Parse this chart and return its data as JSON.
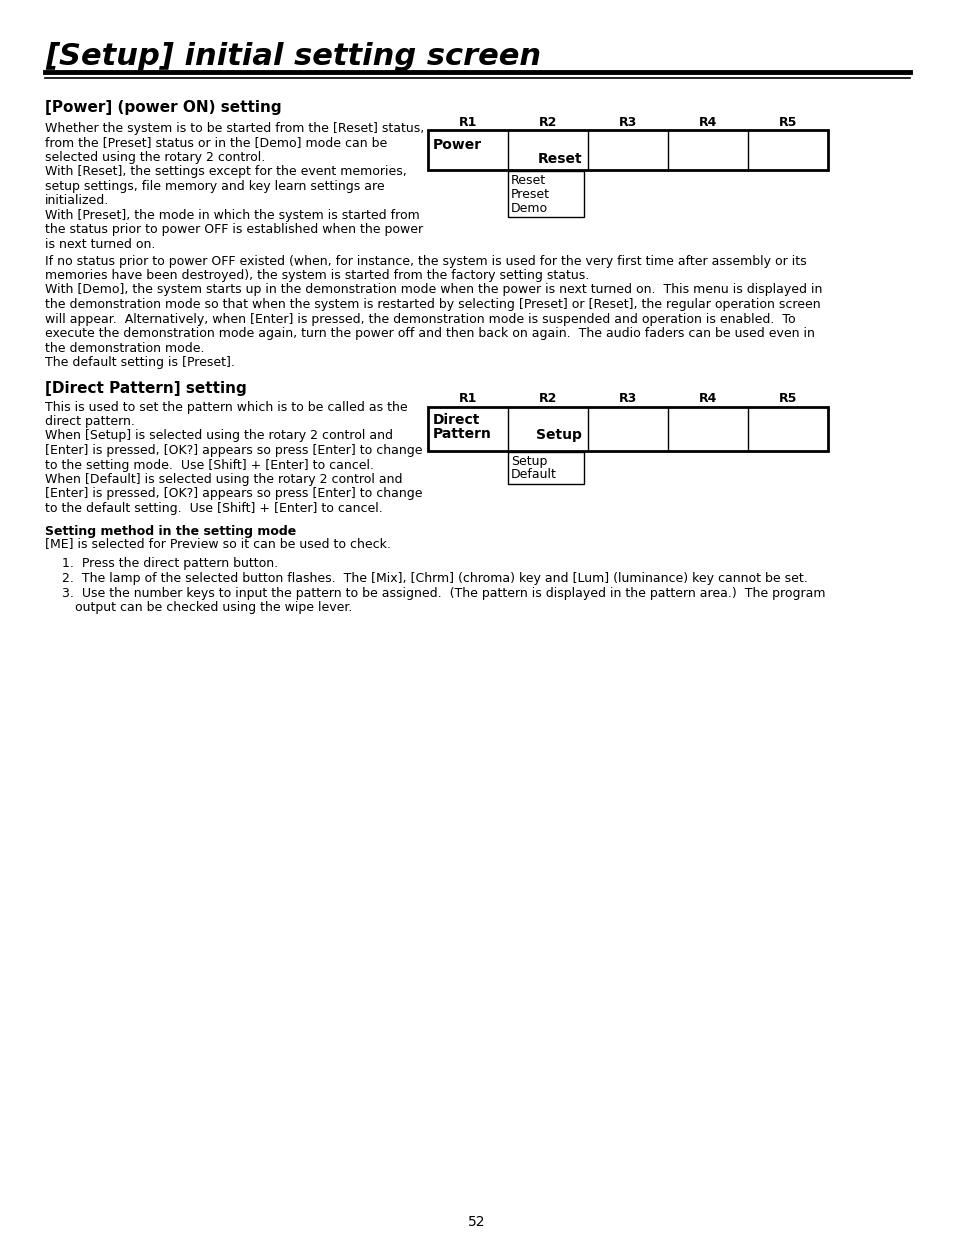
{
  "title": "[Setup] initial setting screen",
  "page_number": "52",
  "background_color": "#ffffff",
  "section1_heading": "[Power] (power ON) setting",
  "section1_body_narrow": [
    "Whether the system is to be started from the [Reset] status,",
    "from the [Preset] status or in the [Demo] mode can be",
    "selected using the rotary 2 control.",
    "With [Reset], the settings except for the event memories,",
    "setup settings, file memory and key learn settings are",
    "initialized.",
    "With [Preset], the mode in which the system is started from",
    "the status prior to power OFF is established when the power",
    "is next turned on."
  ],
  "section1_body_wide": [
    "If no status prior to power OFF existed (when, for instance, the system is used for the very first time after assembly or its",
    "memories have been destroyed), the system is started from the factory setting status.",
    "With [Demo], the system starts up in the demonstration mode when the power is next turned on.  This menu is displayed in",
    "the demonstration mode so that when the system is restarted by selecting [Preset] or [Reset], the regular operation screen",
    "will appear.  Alternatively, when [Enter] is pressed, the demonstration mode is suspended and operation is enabled.  To",
    "execute the demonstration mode again, turn the power off and then back on again.  The audio faders can be used even in",
    "the demonstration mode.",
    "The default setting is [Preset]."
  ],
  "table1_headers": [
    "R1",
    "R2",
    "R3",
    "R4",
    "R5"
  ],
  "table1_label": "Power",
  "table1_r2_val": "Reset",
  "table1_dropdown": [
    "Reset",
    "Preset",
    "Demo"
  ],
  "section2_heading": "[Direct Pattern] setting",
  "section2_body": [
    "This is used to set the pattern which is to be called as the",
    "direct pattern.",
    "When [Setup] is selected using the rotary 2 control and",
    "[Enter] is pressed, [OK?] appears so press [Enter] to change",
    "to the setting mode.  Use [Shift] + [Enter] to cancel.",
    "When [Default] is selected using the rotary 2 control and",
    "[Enter] is pressed, [OK?] appears so press [Enter] to change",
    "to the default setting.  Use [Shift] + [Enter] to cancel."
  ],
  "table2_headers": [
    "R1",
    "R2",
    "R3",
    "R4",
    "R5"
  ],
  "table2_label1": "Direct",
  "table2_label2": "Pattern",
  "table2_r2_val": "Setup",
  "table2_dropdown": [
    "Setup",
    "Default"
  ],
  "section3_heading": "Setting method in the setting mode",
  "section3_intro": "[ME] is selected for Preview so it can be used to check.",
  "section3_list_item1": "Press the direct pattern button.",
  "section3_list_item2": "The lamp of the selected button flashes.  The [Mix], [Chrm] (chroma) key and [Lum] (luminance) key cannot be set.",
  "section3_list_item3a": "Use the number keys to input the pattern to be assigned.  (The pattern is displayed in the pattern area.)  The program",
  "section3_list_item3b": "output can be checked using the wipe lever."
}
